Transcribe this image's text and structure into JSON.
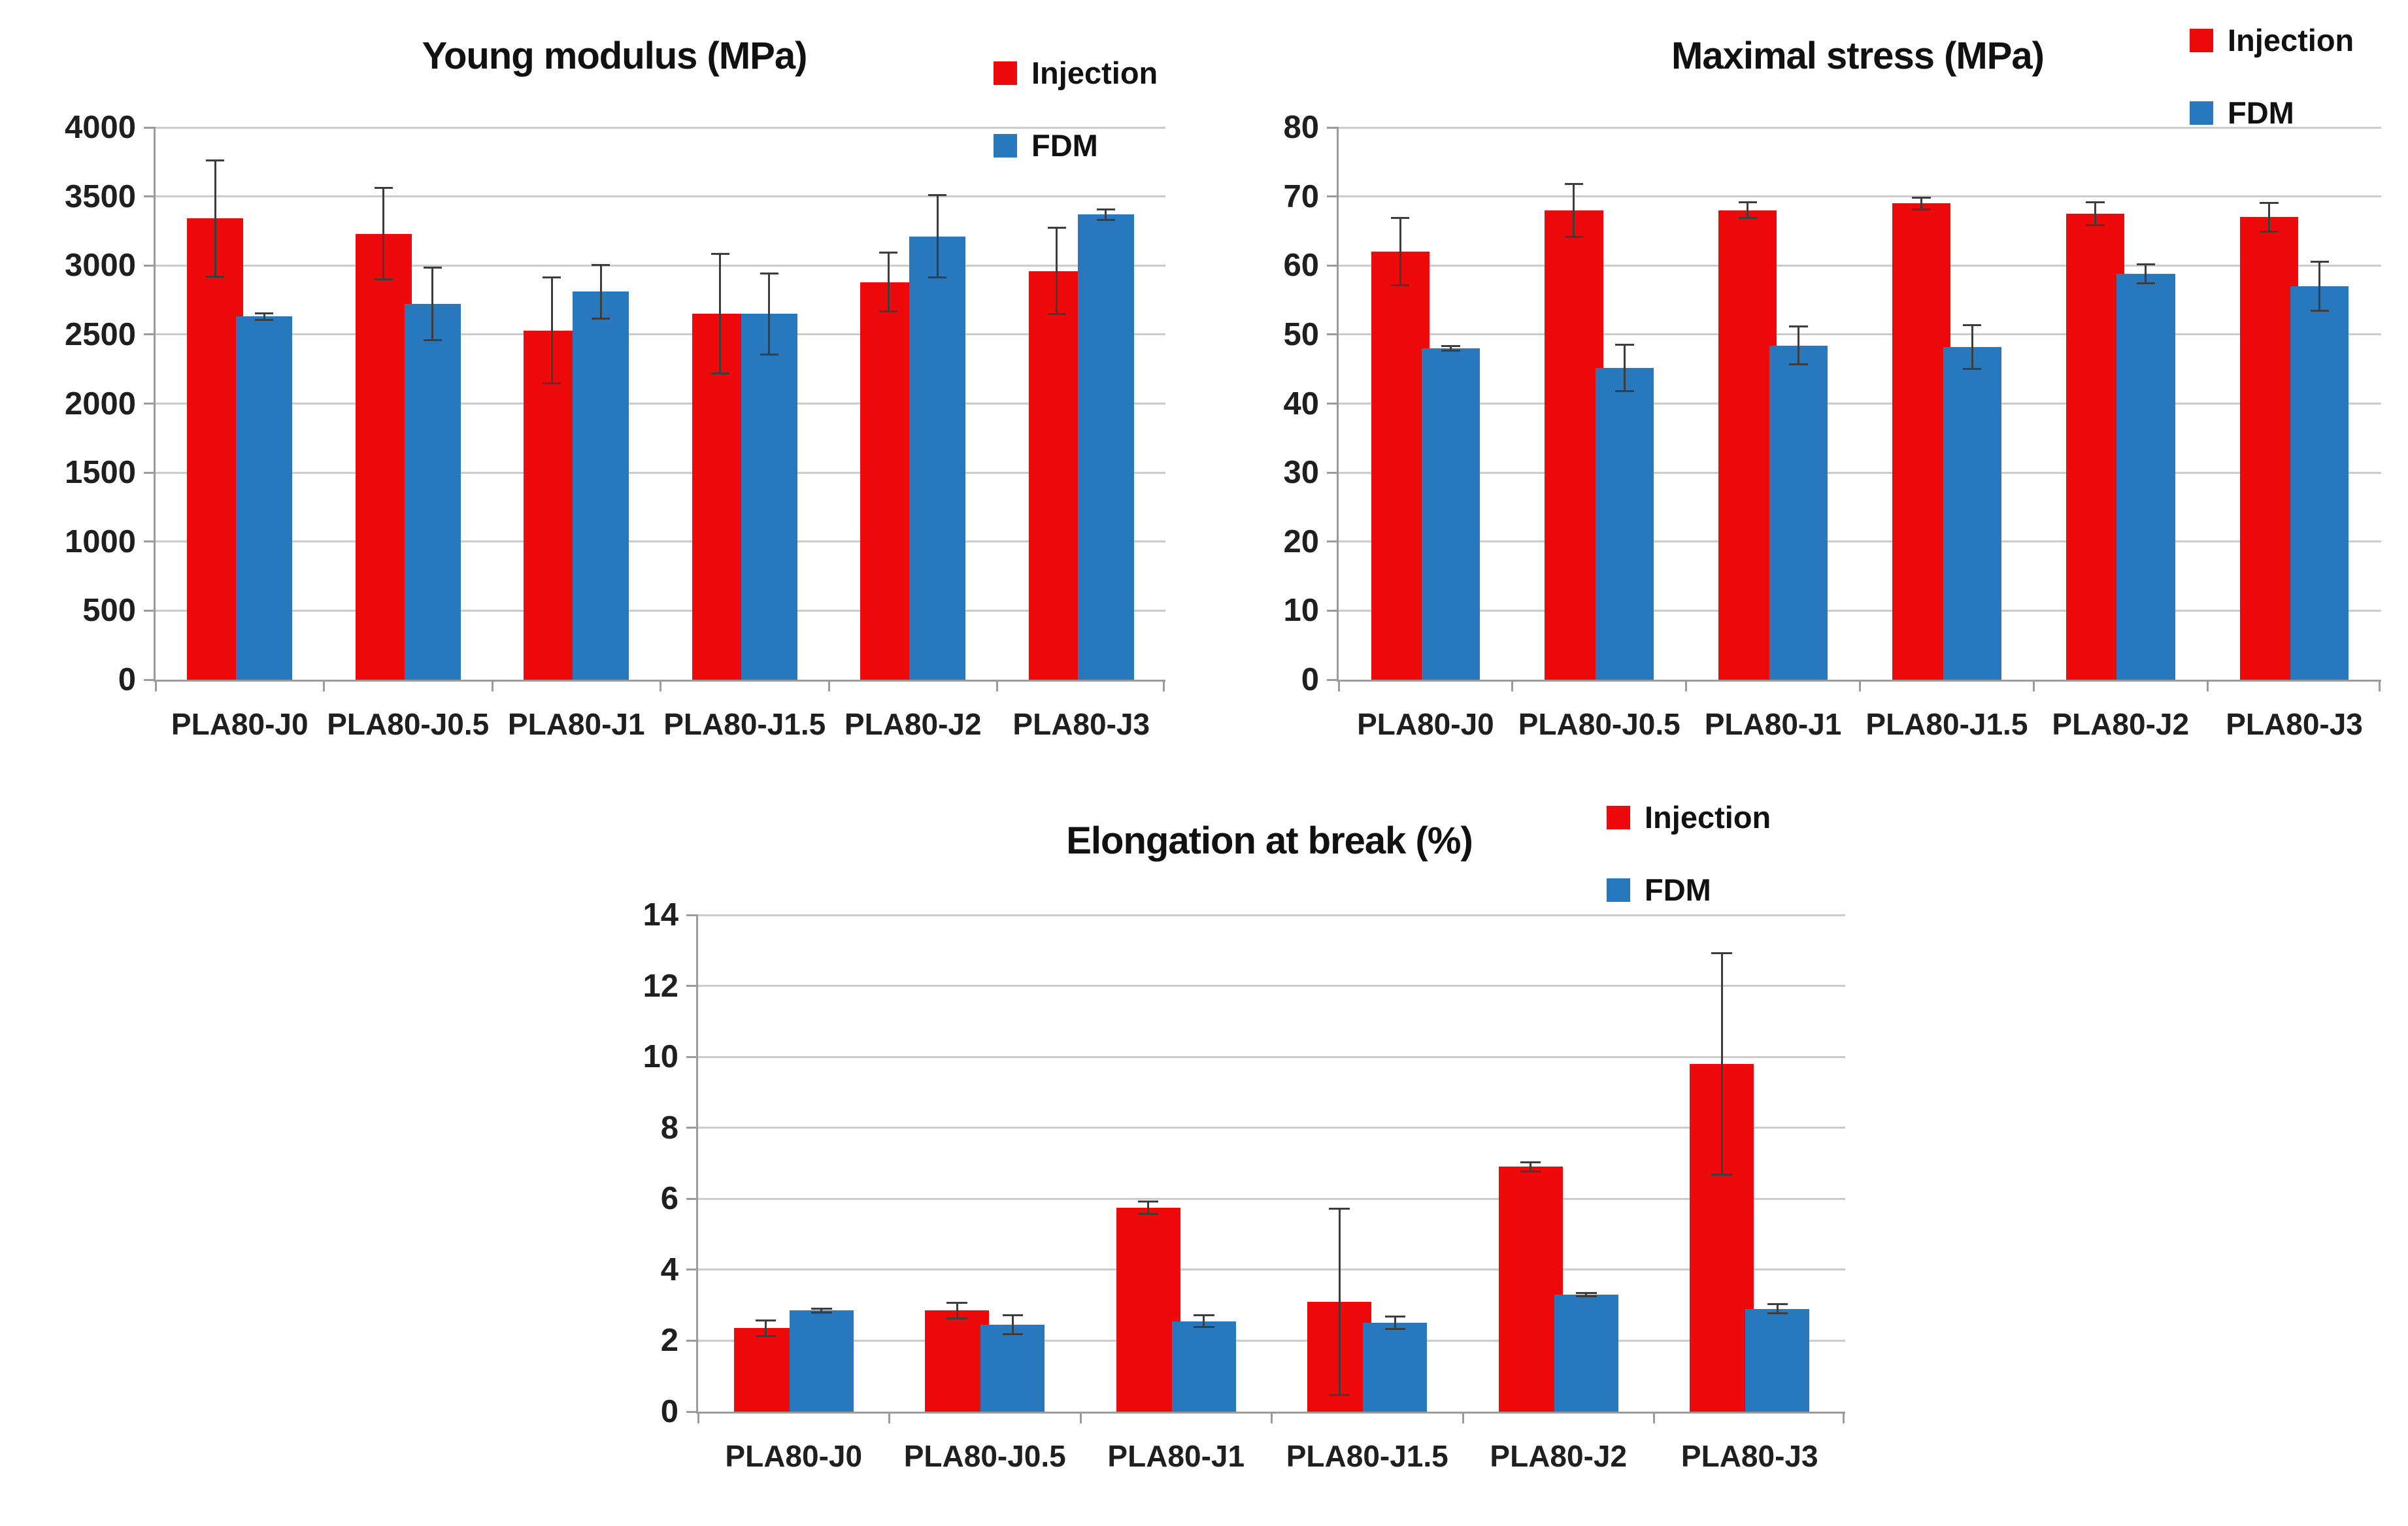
{
  "colors": {
    "injection": "#ee0a0a",
    "fdm": "#2878be",
    "grid": "#cbcbcb",
    "axis": "#9b9b9b",
    "error_bar": "#3d3d3d",
    "text": "#1f1f1f"
  },
  "legend": {
    "injection_label": "Injection",
    "fdm_label": "FDM"
  },
  "chart_data": [
    {
      "type": "bar",
      "title": "Young modulus (MPa)",
      "categories": [
        "PLA80-J0",
        "PLA80-J0.5",
        "PLA80-J1",
        "PLA80-J1.5",
        "PLA80-J2",
        "PLA80-J3"
      ],
      "ylim": [
        0,
        4000
      ],
      "ytick_step": 500,
      "yticks": [
        0,
        500,
        1000,
        1500,
        2000,
        2500,
        3000,
        3500,
        4000
      ],
      "grid": true,
      "legend_position": "top-right",
      "series": [
        {
          "name": "Injection",
          "color_key": "injection",
          "values": [
            3340,
            3230,
            2530,
            2650,
            2880,
            2960
          ],
          "errors": [
            430,
            340,
            390,
            440,
            220,
            320
          ]
        },
        {
          "name": "FDM",
          "color_key": "fdm",
          "values": [
            2630,
            2720,
            2810,
            2650,
            3210,
            3370
          ],
          "errors": [
            30,
            270,
            200,
            300,
            305,
            45
          ]
        }
      ]
    },
    {
      "type": "bar",
      "title": "Maximal stress (MPa)",
      "categories": [
        "PLA80-J0",
        "PLA80-J0.5",
        "PLA80-J1",
        "PLA80-J1.5",
        "PLA80-J2",
        "PLA80-J3"
      ],
      "ylim": [
        0,
        80
      ],
      "ytick_step": 10,
      "yticks": [
        0,
        10,
        20,
        30,
        40,
        50,
        60,
        70,
        80
      ],
      "grid": true,
      "legend_position": "top-right",
      "series": [
        {
          "name": "Injection",
          "color_key": "injection",
          "values": [
            62,
            68,
            68,
            69,
            67.5,
            67
          ],
          "errors": [
            5,
            4,
            1.3,
            1,
            1.8,
            2.2
          ]
        },
        {
          "name": "FDM",
          "color_key": "fdm",
          "values": [
            48,
            45.2,
            48.4,
            48.2,
            58.8,
            57
          ],
          "errors": [
            0.5,
            3.5,
            2.9,
            3.3,
            1.5,
            3.7
          ]
        }
      ]
    },
    {
      "type": "bar",
      "title": "Elongation at break (%)",
      "categories": [
        "PLA80-J0",
        "PLA80-J0.5",
        "PLA80-J1",
        "PLA80-J1.5",
        "PLA80-J2",
        "PLA80-J3"
      ],
      "ylim": [
        0,
        14
      ],
      "ytick_step": 2,
      "yticks": [
        0,
        2,
        4,
        6,
        8,
        10,
        12,
        14
      ],
      "grid": true,
      "legend_position": "top-right",
      "series": [
        {
          "name": "Injection",
          "color_key": "injection",
          "values": [
            2.35,
            2.85,
            5.75,
            3.1,
            6.9,
            9.8
          ],
          "errors": [
            0.25,
            0.25,
            0.2,
            2.65,
            0.15,
            3.15
          ]
        },
        {
          "name": "FDM",
          "color_key": "fdm",
          "values": [
            2.85,
            2.45,
            2.55,
            2.5,
            3.3,
            2.9
          ],
          "errors": [
            0.08,
            0.3,
            0.2,
            0.2,
            0.07,
            0.15
          ]
        }
      ]
    }
  ]
}
